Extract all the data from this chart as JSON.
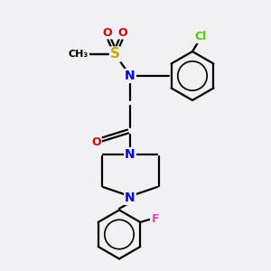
{
  "background_color": "#f0f0f5",
  "atom_colors": {
    "C": "#000000",
    "N": "#0000ee",
    "O": "#dd0000",
    "S": "#ccaa00",
    "Cl": "#44cc00",
    "F": "#ee44aa",
    "H": "#000000"
  },
  "bond_color": "#000000",
  "bond_width": 1.6,
  "font_size": 9,
  "font_size_small": 8
}
